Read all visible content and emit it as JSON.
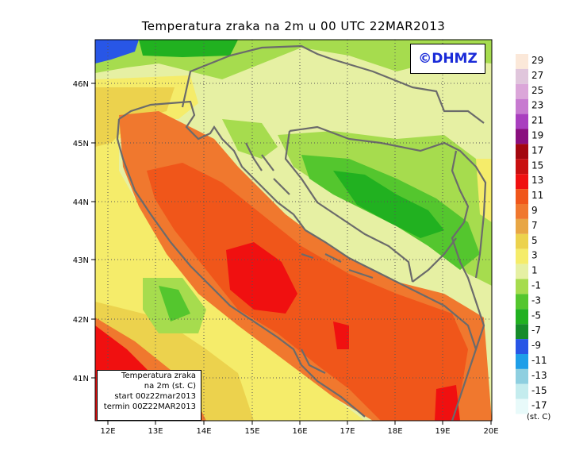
{
  "title": "Temperatura zraka na 2m u 00 UTC 22MAR2013",
  "copyright": "©DHMZ",
  "axes": {
    "lat_ticks": [
      "46N",
      "45N",
      "44N",
      "43N",
      "42N",
      "41N"
    ],
    "lon_ticks": [
      "12E",
      "13E",
      "14E",
      "15E",
      "16E",
      "17E",
      "18E",
      "19E",
      "20E"
    ]
  },
  "info_box": {
    "line1": "Temperatura zraka",
    "line2": "na 2m (st. C)",
    "line3": "start 00z22mar2013",
    "line4": "termin 00Z22MAR2013"
  },
  "legend": {
    "unit": "(st. C)",
    "labels": [
      "29",
      "27",
      "25",
      "23",
      "21",
      "19",
      "17",
      "15",
      "13",
      "11",
      "9",
      "7",
      "5",
      "3",
      "1",
      "-1",
      "-3",
      "-5",
      "-7",
      "-9",
      "-11",
      "-13",
      "-15",
      "-17"
    ],
    "colors": [
      "#fbe8d9",
      "#e0c6dc",
      "#dba6d9",
      "#c77ad0",
      "#a93fbf",
      "#8a0f7e",
      "#a3070f",
      "#c90f0f",
      "#f01010",
      "#f0561a",
      "#f0782e",
      "#e8a644",
      "#ecd24d",
      "#f5ec6a",
      "#e6f0a3",
      "#a6dc4e",
      "#54c62e",
      "#21b120",
      "#168b2a",
      "#2856e6",
      "#1e9ee8",
      "#8ecfe0",
      "#c4ecee",
      "#e8fafa"
    ]
  },
  "colors": {
    "coast": "#6b6b6b",
    "grid": "#555555"
  }
}
